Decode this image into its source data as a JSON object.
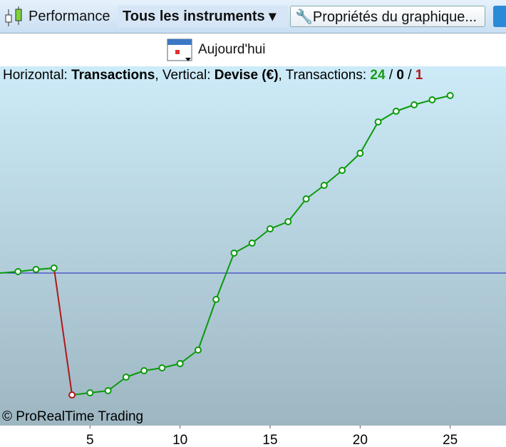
{
  "toolbar": {
    "performance": "Performance",
    "instruments": "Tous les instruments",
    "properties": "Propriétés du graphique..."
  },
  "date_button": "Aujourd'hui",
  "info": {
    "h_label": "Horizontal:",
    "h_value": "Transactions",
    "v_label": ", Vertical:",
    "v_value": "Devise (€)",
    "t_label": ", Transactions:",
    "wins": 24,
    "sep1": "/",
    "neutral": 0,
    "sep2": "/",
    "losses": 1
  },
  "copyright": "© ProRealTime Trading",
  "chart_data": {
    "type": "line",
    "x": [
      0,
      1,
      2,
      3,
      4,
      5,
      6,
      7,
      8,
      9,
      10,
      11,
      12,
      13,
      14,
      15,
      16,
      17,
      18,
      19,
      20,
      21,
      22,
      23,
      24,
      25
    ],
    "series": [
      {
        "values": [
          0,
          0.2,
          0.5,
          0.7,
          -17.1,
          -16.8,
          -16.5,
          -14.6,
          -13.7,
          -13.3,
          -12.7,
          -10.8,
          -3.7,
          2.8,
          4.2,
          6.2,
          7.2,
          10.4,
          12.3,
          14.4,
          16.8,
          21.2,
          22.7,
          23.6,
          24.3,
          24.9
        ],
        "colors": [
          "#0a9a0a",
          "#0a9a0a",
          "#0a9a0a",
          "#0a9a0a",
          "#b01818",
          "#0a9a0a",
          "#0a9a0a",
          "#0a9a0a",
          "#0a9a0a",
          "#0a9a0a",
          "#0a9a0a",
          "#0a9a0a",
          "#0a9a0a",
          "#0a9a0a",
          "#0a9a0a",
          "#0a9a0a",
          "#0a9a0a",
          "#0a9a0a",
          "#0a9a0a",
          "#0a9a0a",
          "#0a9a0a",
          "#0a9a0a",
          "#0a9a0a",
          "#0a9a0a",
          "#0a9a0a",
          "#0a9a0a"
        ]
      }
    ],
    "xlim": [
      0,
      28.1
    ],
    "xticks": [
      5,
      10,
      15,
      20,
      25
    ],
    "ylim": [
      -21.4,
      29
    ],
    "hline": 0,
    "hline_color": "#2020c0"
  }
}
